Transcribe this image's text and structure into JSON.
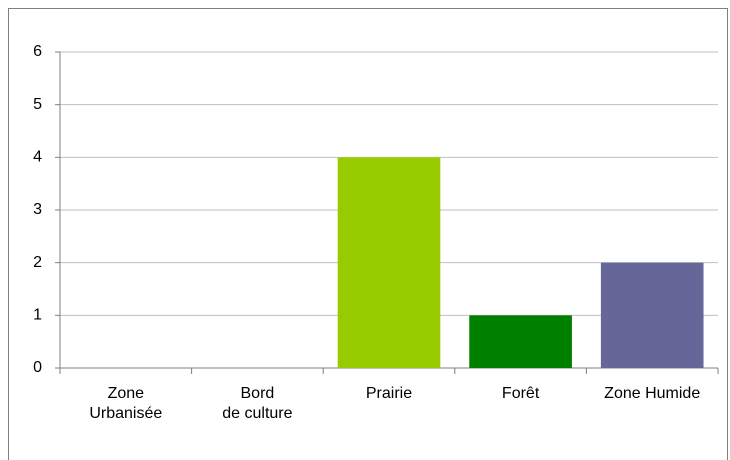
{
  "chart_data": {
    "type": "bar",
    "categories": [
      "Zone Urbanisée",
      "Bord de culture",
      "Prairie",
      "Forêt",
      "Zone Humide"
    ],
    "values": [
      0,
      0,
      4,
      1,
      2
    ],
    "colors": [
      null,
      null,
      "#99cc00",
      "#008000",
      "#666699"
    ],
    "ylim": [
      0,
      6
    ],
    "yticks": [
      0,
      1,
      2,
      3,
      4,
      5,
      6
    ],
    "grid": true
  }
}
